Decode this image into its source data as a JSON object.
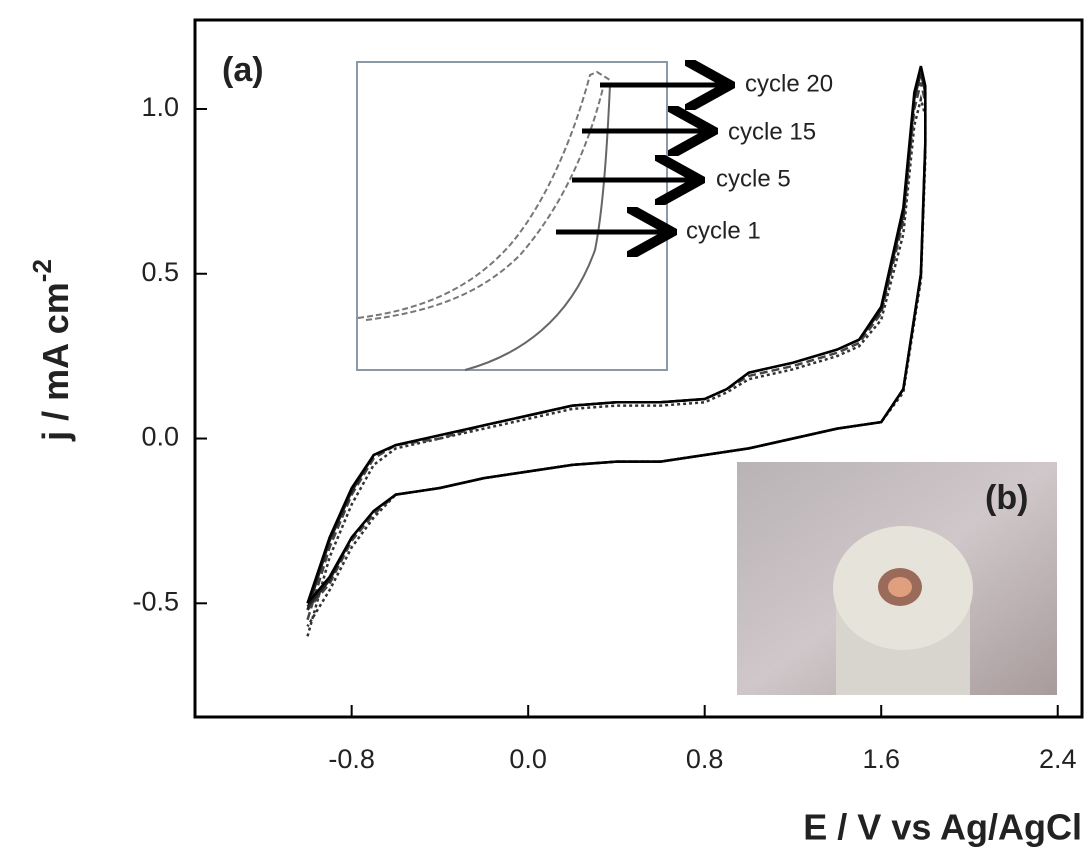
{
  "chart_data": {
    "type": "line",
    "xlabel": "E / V vs Ag/AgCl",
    "ylabel": "j / mA cm",
    "ylabel_sup": "-2",
    "annotations": [
      "(a)",
      "(b)"
    ],
    "xlim": [
      -1.51,
      2.51
    ],
    "ylim": [
      -0.845,
      1.27
    ],
    "xticks": [
      -0.8,
      {
        "value": 0,
        "label": "0.0"
      },
      0.8,
      1.6,
      2.4
    ],
    "yticks": [
      -0.5,
      {
        "value": 0,
        "label": "0.0"
      },
      0.5,
      {
        "value": 1,
        "label": "1.0"
      }
    ],
    "series": [
      {
        "name": "cycle 1",
        "color": "#333333",
        "dash": "3,3",
        "x": [
          -1.0,
          -0.9,
          -0.8,
          -0.7,
          -0.6,
          -0.4,
          -0.2,
          0,
          0.2,
          0.4,
          0.6,
          0.8,
          0.9,
          1.0,
          1.2,
          1.4,
          1.5,
          1.6,
          1.7,
          1.75,
          1.78,
          1.8,
          1.8,
          1.78,
          1.7,
          1.6,
          1.4,
          1.2,
          1.0,
          0.8,
          0.6,
          0.4,
          0.2,
          0,
          -0.2,
          -0.4,
          -0.5,
          -0.6,
          -0.7,
          -0.8,
          -0.9,
          -1.0
        ],
        "values": [
          -0.6,
          -0.36,
          -0.2,
          -0.08,
          -0.03,
          0.0,
          0.03,
          0.06,
          0.09,
          0.1,
          0.1,
          0.11,
          0.14,
          0.18,
          0.21,
          0.25,
          0.28,
          0.36,
          0.62,
          0.95,
          1.03,
          0.98,
          0.85,
          0.48,
          0.14,
          0.05,
          0.03,
          0.0,
          -0.03,
          -0.05,
          -0.07,
          -0.07,
          -0.08,
          -0.1,
          -0.12,
          -0.15,
          -0.16,
          -0.17,
          -0.24,
          -0.33,
          -0.46,
          -0.57
        ]
      },
      {
        "name": "cycle 5",
        "color": "#444444",
        "dash": "8,4",
        "x": [
          -1.0,
          -0.9,
          -0.8,
          -0.7,
          -0.6,
          -0.4,
          -0.2,
          0,
          0.2,
          0.4,
          0.6,
          0.8,
          0.9,
          1.0,
          1.2,
          1.4,
          1.5,
          1.6,
          1.7,
          1.75,
          1.78,
          1.8,
          1.8,
          1.78,
          1.7,
          1.6,
          1.4,
          1.2,
          1.0,
          0.8,
          0.6,
          0.4,
          0.2,
          0,
          -0.2,
          -0.4,
          -0.5,
          -0.6,
          -0.7,
          -0.8,
          -0.9,
          -1.0
        ],
        "values": [
          -0.55,
          -0.33,
          -0.17,
          -0.06,
          -0.02,
          0.0,
          0.04,
          0.07,
          0.1,
          0.11,
          0.11,
          0.12,
          0.15,
          0.19,
          0.22,
          0.26,
          0.29,
          0.38,
          0.66,
          1.0,
          1.08,
          1.02,
          0.88,
          0.49,
          0.15,
          0.05,
          0.03,
          0.0,
          -0.03,
          -0.05,
          -0.07,
          -0.07,
          -0.08,
          -0.1,
          -0.12,
          -0.15,
          -0.16,
          -0.17,
          -0.23,
          -0.31,
          -0.44,
          -0.52
        ]
      },
      {
        "name": "cycle 15",
        "color": "#222222",
        "dash": "",
        "x": [
          -1.0,
          -0.9,
          -0.8,
          -0.7,
          -0.6,
          -0.4,
          -0.2,
          0,
          0.2,
          0.4,
          0.6,
          0.8,
          0.9,
          1.0,
          1.2,
          1.4,
          1.5,
          1.6,
          1.7,
          1.75,
          1.78,
          1.8,
          1.8,
          1.78,
          1.7,
          1.6,
          1.4,
          1.2,
          1.0,
          0.8,
          0.6,
          0.4,
          0.2,
          0,
          -0.2,
          -0.4,
          -0.5,
          -0.6,
          -0.7,
          -0.8,
          -0.9,
          -1.0
        ],
        "values": [
          -0.52,
          -0.31,
          -0.16,
          -0.05,
          -0.02,
          0.01,
          0.04,
          0.07,
          0.1,
          0.11,
          0.11,
          0.12,
          0.15,
          0.2,
          0.23,
          0.27,
          0.3,
          0.39,
          0.68,
          1.03,
          1.11,
          1.05,
          0.89,
          0.5,
          0.15,
          0.05,
          0.03,
          0.0,
          -0.03,
          -0.05,
          -0.07,
          -0.07,
          -0.08,
          -0.1,
          -0.12,
          -0.15,
          -0.16,
          -0.17,
          -0.22,
          -0.3,
          -0.43,
          -0.51
        ]
      },
      {
        "name": "cycle 20",
        "color": "#000000",
        "dash": "",
        "x": [
          -1.0,
          -0.9,
          -0.8,
          -0.7,
          -0.6,
          -0.4,
          -0.2,
          0,
          0.2,
          0.4,
          0.6,
          0.8,
          0.9,
          1.0,
          1.2,
          1.4,
          1.5,
          1.6,
          1.7,
          1.75,
          1.78,
          1.8,
          1.8,
          1.78,
          1.7,
          1.6,
          1.4,
          1.2,
          1.0,
          0.8,
          0.6,
          0.4,
          0.2,
          0,
          -0.2,
          -0.4,
          -0.5,
          -0.6,
          -0.7,
          -0.8,
          -0.9,
          -1.0
        ],
        "values": [
          -0.5,
          -0.3,
          -0.15,
          -0.05,
          -0.02,
          0.01,
          0.04,
          0.07,
          0.1,
          0.11,
          0.11,
          0.12,
          0.15,
          0.2,
          0.23,
          0.27,
          0.3,
          0.4,
          0.7,
          1.05,
          1.13,
          1.07,
          0.9,
          0.5,
          0.15,
          0.05,
          0.03,
          0.0,
          -0.03,
          -0.05,
          -0.07,
          -0.07,
          -0.08,
          -0.1,
          -0.12,
          -0.15,
          -0.16,
          -0.17,
          -0.22,
          -0.3,
          -0.42,
          -0.5
        ]
      }
    ]
  }
}
